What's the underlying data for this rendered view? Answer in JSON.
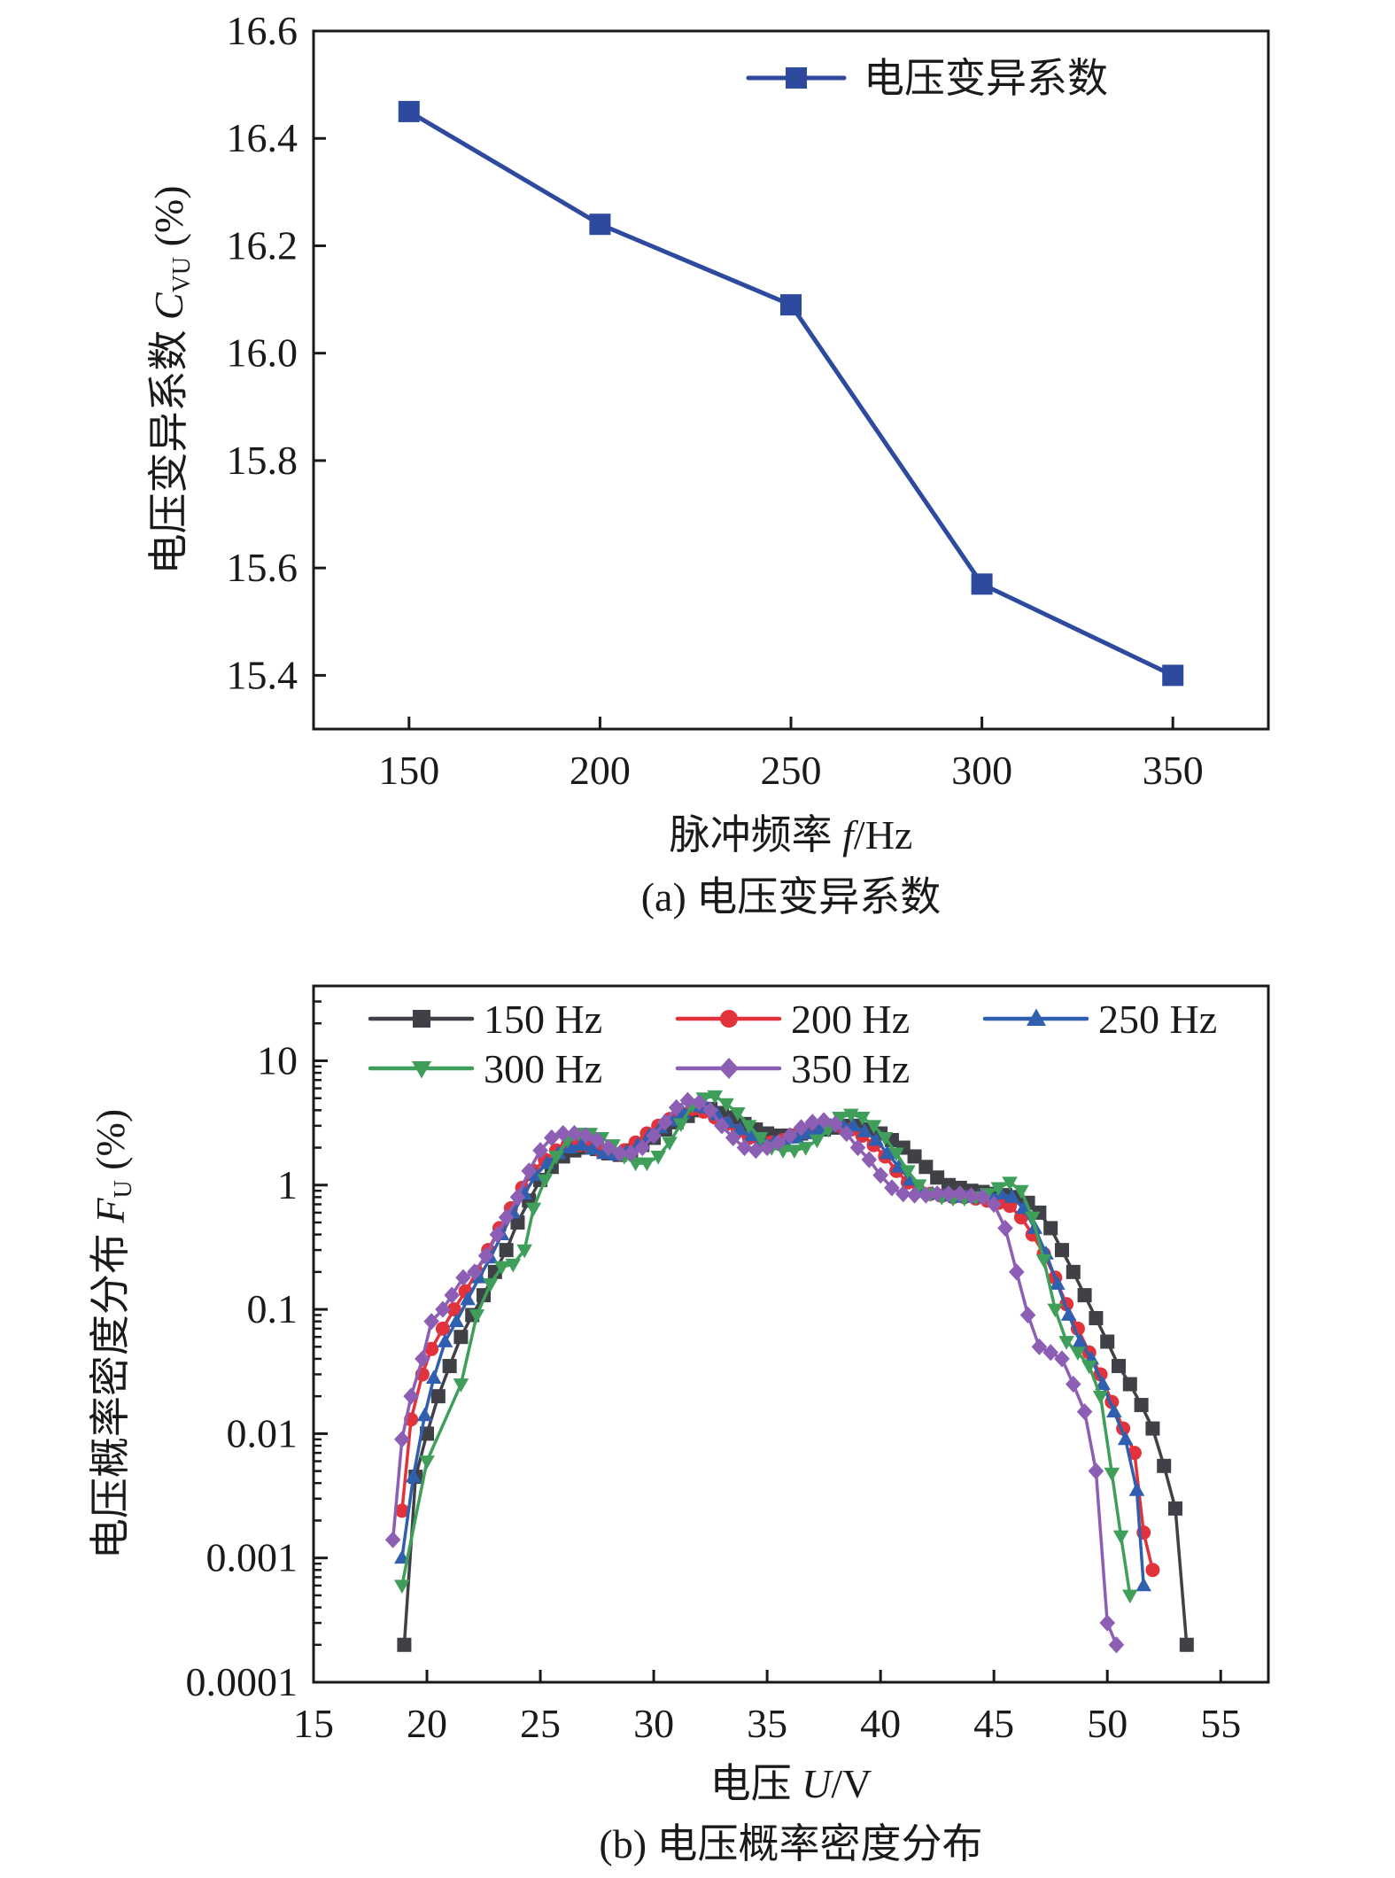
{
  "chart_data": [
    {
      "type": "line",
      "panel": "a",
      "caption": "(a) 电压变异系数",
      "xlabel": "脉冲频率 f/Hz",
      "ylabel": "电压变异系数 C_VU (%)",
      "ylabel_parts": {
        "main": "电压变异系数 ",
        "symbol": "C",
        "subscript": "VU",
        "unit": " (%)"
      },
      "xlabel_parts": {
        "main": "脉冲频率 ",
        "symbol": "f",
        "unit": "/Hz"
      },
      "x": [
        150,
        200,
        250,
        300,
        350
      ],
      "xticks": [
        "150",
        "200",
        "250",
        "300",
        "350"
      ],
      "yticks": [
        "15.4",
        "15.6",
        "15.8",
        "16.0",
        "16.2",
        "16.4",
        "16.6"
      ],
      "xlim": [
        125,
        375
      ],
      "ylim": [
        15.3,
        16.6
      ],
      "grid": false,
      "legend_position": "top-right",
      "series": [
        {
          "name": "电压变异系数",
          "color": "#2e4a9e",
          "marker": "square",
          "values": [
            16.45,
            16.24,
            16.09,
            15.57,
            15.4
          ]
        }
      ]
    },
    {
      "type": "line",
      "panel": "b",
      "caption": "(b) 电压概率密度分布",
      "xlabel": "电压 U/V",
      "ylabel": "电压概率密度分布 F_U (%)",
      "ylabel_parts": {
        "main": "电压概率密度分布 ",
        "symbol": "F",
        "subscript": "U",
        "unit": " (%)"
      },
      "xlabel_parts": {
        "main": "电压 ",
        "symbol": "U",
        "unit": "/V"
      },
      "yscale": "log",
      "xticks": [
        "15",
        "20",
        "25",
        "30",
        "35",
        "40",
        "45",
        "50",
        "55"
      ],
      "yticks": [
        "0.0001",
        "0.001",
        "0.01",
        "0.1",
        "1",
        "10"
      ],
      "xlim": [
        15,
        57.1
      ],
      "ylim": [
        0.0001,
        40
      ],
      "grid": false,
      "legend_position": "top",
      "series": [
        {
          "name": "150 Hz",
          "color": "#3f4146",
          "marker": "square",
          "x": [
            19.0,
            19.5,
            20.0,
            20.5,
            21.0,
            21.5,
            22.0,
            22.5,
            23.0,
            23.5,
            24.0,
            24.5,
            25.0,
            25.5,
            26.0,
            26.5,
            27.0,
            27.5,
            28.0,
            28.5,
            29.0,
            29.5,
            30.0,
            30.5,
            31.0,
            31.5,
            32.0,
            32.5,
            33.0,
            33.5,
            34.0,
            34.5,
            35.0,
            35.5,
            36.0,
            36.5,
            37.0,
            37.5,
            38.0,
            38.5,
            39.0,
            39.5,
            40.0,
            40.5,
            41.0,
            41.5,
            42.0,
            42.5,
            43.0,
            43.5,
            44.0,
            44.5,
            45.0,
            45.5,
            46.0,
            46.5,
            47.0,
            47.5,
            48.0,
            48.5,
            49.0,
            49.5,
            50.0,
            50.5,
            51.0,
            51.5,
            52.0,
            52.5,
            53.0,
            53.5
          ],
          "y": [
            0.0002,
            0.0045,
            0.01,
            0.02,
            0.035,
            0.06,
            0.09,
            0.13,
            0.2,
            0.3,
            0.5,
            0.75,
            1.1,
            1.4,
            1.7,
            1.9,
            2.0,
            1.95,
            1.8,
            1.75,
            1.9,
            2.1,
            2.4,
            2.8,
            3.2,
            3.6,
            4.0,
            4.1,
            3.8,
            3.5,
            3.1,
            2.8,
            2.6,
            2.5,
            2.5,
            2.6,
            2.7,
            2.8,
            2.9,
            3.0,
            3.0,
            2.8,
            2.6,
            2.3,
            2.0,
            1.7,
            1.4,
            1.15,
            1.0,
            0.95,
            0.9,
            0.88,
            0.85,
            0.83,
            0.8,
            0.72,
            0.6,
            0.45,
            0.3,
            0.2,
            0.13,
            0.085,
            0.055,
            0.035,
            0.025,
            0.017,
            0.011,
            0.0055,
            0.0025,
            0.0002
          ]
        },
        {
          "name": "200 Hz",
          "color": "#e2333c",
          "marker": "circle",
          "x": [
            18.9,
            19.3,
            19.8,
            20.2,
            20.7,
            21.2,
            21.7,
            22.2,
            22.7,
            23.2,
            23.7,
            24.2,
            24.7,
            25.2,
            25.7,
            26.2,
            26.7,
            27.2,
            27.7,
            28.2,
            28.7,
            29.2,
            29.7,
            30.2,
            30.7,
            31.2,
            31.7,
            32.2,
            32.7,
            33.2,
            33.7,
            34.2,
            34.7,
            35.2,
            35.7,
            36.2,
            36.7,
            37.2,
            37.7,
            38.2,
            38.7,
            39.2,
            39.7,
            40.2,
            40.7,
            41.2,
            41.7,
            42.2,
            42.7,
            43.2,
            43.7,
            44.2,
            44.7,
            45.2,
            45.7,
            46.2,
            46.7,
            47.2,
            47.7,
            48.2,
            48.7,
            49.2,
            49.7,
            50.2,
            50.7,
            51.2,
            51.6,
            52.0
          ],
          "y": [
            0.0024,
            0.013,
            0.03,
            0.048,
            0.07,
            0.1,
            0.14,
            0.2,
            0.3,
            0.45,
            0.65,
            0.95,
            1.3,
            1.6,
            1.9,
            2.1,
            2.1,
            2.0,
            1.85,
            1.8,
            1.9,
            2.2,
            2.6,
            3.0,
            3.4,
            3.8,
            4.1,
            3.9,
            3.5,
            3.1,
            2.7,
            2.4,
            2.3,
            2.2,
            2.3,
            2.5,
            2.7,
            2.9,
            3.0,
            3.0,
            2.8,
            2.5,
            2.1,
            1.7,
            1.3,
            1.05,
            0.9,
            0.85,
            0.82,
            0.8,
            0.8,
            0.78,
            0.75,
            0.72,
            0.68,
            0.55,
            0.4,
            0.28,
            0.18,
            0.11,
            0.07,
            0.045,
            0.03,
            0.018,
            0.011,
            0.007,
            0.0016,
            0.0008
          ]
        },
        {
          "name": "250 Hz",
          "color": "#2f5fae",
          "marker": "triangle-up",
          "x": [
            18.9,
            19.4,
            19.9,
            20.3,
            20.8,
            21.3,
            21.8,
            22.3,
            22.8,
            23.3,
            23.8,
            24.3,
            24.8,
            25.3,
            25.8,
            26.3,
            26.8,
            27.3,
            27.8,
            28.3,
            28.8,
            29.3,
            29.8,
            30.3,
            30.8,
            31.3,
            31.8,
            32.3,
            32.8,
            33.3,
            33.8,
            34.3,
            34.8,
            35.3,
            35.8,
            36.3,
            36.8,
            37.3,
            37.8,
            38.3,
            38.8,
            39.3,
            39.8,
            40.3,
            40.8,
            41.3,
            41.8,
            42.3,
            42.8,
            43.3,
            43.8,
            44.3,
            44.8,
            45.3,
            45.8,
            46.3,
            46.8,
            47.3,
            47.8,
            48.3,
            48.8,
            49.3,
            49.8,
            50.3,
            50.8,
            51.3,
            51.6
          ],
          "y": [
            0.001,
            0.0045,
            0.014,
            0.028,
            0.055,
            0.08,
            0.12,
            0.18,
            0.26,
            0.4,
            0.6,
            0.85,
            1.2,
            1.5,
            1.8,
            2.0,
            2.1,
            1.95,
            1.8,
            1.75,
            1.85,
            2.1,
            2.5,
            2.9,
            3.3,
            3.8,
            4.3,
            4.2,
            3.7,
            3.2,
            2.8,
            2.5,
            2.3,
            2.2,
            2.2,
            2.4,
            2.6,
            2.8,
            3.0,
            3.1,
            3.0,
            2.7,
            2.3,
            1.8,
            1.4,
            1.1,
            0.9,
            0.85,
            0.82,
            0.8,
            0.8,
            0.8,
            0.82,
            0.85,
            0.8,
            0.65,
            0.45,
            0.28,
            0.16,
            0.09,
            0.055,
            0.04,
            0.025,
            0.015,
            0.009,
            0.0035,
            0.0006
          ]
        },
        {
          "name": "300 Hz",
          "color": "#3f9f5a",
          "marker": "triangle-down",
          "x": [
            18.9,
            20.0,
            21.5,
            22.2,
            22.8,
            23.3,
            23.8,
            24.3,
            24.7,
            25.2,
            25.7,
            26.2,
            26.7,
            27.2,
            27.7,
            28.2,
            28.7,
            29.2,
            29.7,
            30.2,
            30.7,
            31.2,
            31.7,
            32.2,
            32.7,
            33.2,
            33.7,
            34.2,
            34.7,
            35.2,
            35.7,
            36.2,
            36.7,
            37.2,
            37.7,
            38.2,
            38.7,
            39.2,
            39.7,
            40.2,
            40.7,
            41.2,
            41.7,
            42.2,
            42.7,
            43.2,
            43.7,
            44.2,
            44.7,
            45.2,
            45.7,
            46.2,
            46.7,
            47.2,
            47.7,
            48.2,
            48.7,
            49.2,
            49.7,
            50.2,
            50.6,
            51.0
          ],
          "y": [
            0.0006,
            0.006,
            0.025,
            0.09,
            0.16,
            0.22,
            0.23,
            0.3,
            0.65,
            1.1,
            1.7,
            2.3,
            2.6,
            2.6,
            2.4,
            2.1,
            1.7,
            1.5,
            1.5,
            1.7,
            2.2,
            3.1,
            4.4,
            5.0,
            5.2,
            4.5,
            3.8,
            3.0,
            2.4,
            2.0,
            1.9,
            1.9,
            2.0,
            2.3,
            2.8,
            3.5,
            3.7,
            3.5,
            3.0,
            2.4,
            1.8,
            1.3,
            1.0,
            0.85,
            0.8,
            0.78,
            0.78,
            0.8,
            0.85,
            0.95,
            1.05,
            0.9,
            0.55,
            0.25,
            0.1,
            0.055,
            0.045,
            0.035,
            0.02,
            0.0048,
            0.0015,
            0.0005
          ]
        },
        {
          "name": "350 Hz",
          "color": "#8c5fb5",
          "marker": "diamond",
          "x": [
            18.5,
            18.9,
            19.3,
            19.8,
            20.2,
            20.7,
            21.1,
            21.6,
            22.1,
            22.6,
            23.1,
            23.5,
            24.0,
            24.5,
            25.0,
            25.5,
            26.0,
            26.5,
            27.0,
            27.5,
            28.0,
            28.5,
            29.0,
            29.5,
            30.0,
            30.5,
            31.0,
            31.5,
            32.0,
            32.5,
            33.0,
            33.5,
            34.0,
            34.5,
            35.0,
            35.5,
            36.0,
            36.5,
            37.0,
            37.5,
            38.0,
            38.5,
            39.0,
            39.5,
            40.0,
            40.5,
            41.0,
            41.5,
            42.0,
            42.5,
            43.0,
            43.5,
            44.0,
            44.5,
            45.0,
            45.5,
            46.0,
            46.5,
            47.0,
            47.5,
            48.0,
            48.5,
            49.0,
            49.5,
            50.0,
            50.4
          ],
          "y": [
            0.0014,
            0.009,
            0.02,
            0.04,
            0.08,
            0.1,
            0.13,
            0.18,
            0.2,
            0.27,
            0.4,
            0.55,
            0.8,
            1.3,
            1.9,
            2.4,
            2.6,
            2.6,
            2.5,
            2.3,
            2.0,
            1.8,
            1.8,
            2.0,
            2.5,
            3.2,
            4.2,
            4.8,
            4.6,
            4.0,
            3.0,
            2.4,
            2.0,
            1.9,
            2.0,
            2.2,
            2.5,
            2.9,
            3.2,
            3.3,
            3.1,
            2.6,
            2.0,
            1.6,
            1.2,
            0.95,
            0.85,
            0.83,
            0.83,
            0.85,
            0.85,
            0.85,
            0.82,
            0.8,
            0.7,
            0.45,
            0.2,
            0.09,
            0.05,
            0.045,
            0.04,
            0.025,
            0.015,
            0.005,
            0.0003,
            0.0002
          ]
        }
      ]
    }
  ]
}
